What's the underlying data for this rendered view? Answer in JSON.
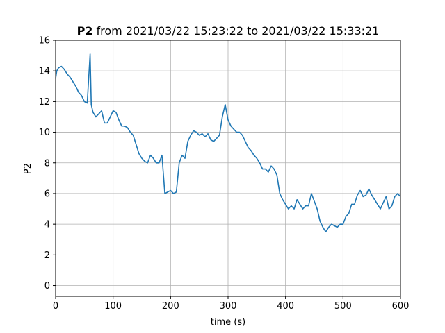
{
  "chart_data": {
    "type": "line",
    "title_bold": "P2",
    "title_rest": " from 2021/03/22 15:23:22 to 2021/03/22 15:33:21",
    "xlabel": "time (s)",
    "ylabel": "P2",
    "xlim": [
      0,
      600
    ],
    "ylim": [
      -0.7,
      16
    ],
    "xticks": [
      0,
      100,
      200,
      300,
      400,
      500,
      600
    ],
    "yticks": [
      0,
      2,
      4,
      6,
      8,
      10,
      12,
      14,
      16
    ],
    "grid": true,
    "line_color": "#1f77b4",
    "series": [
      {
        "x": [
          0,
          2,
          5,
          10,
          15,
          20,
          25,
          30,
          35,
          40,
          45,
          50,
          55,
          60,
          62,
          65,
          70,
          75,
          80,
          85,
          90,
          95,
          100,
          105,
          110,
          115,
          120,
          125,
          130,
          135,
          140,
          145,
          150,
          155,
          160,
          165,
          170,
          175,
          180,
          185,
          190,
          195,
          200,
          205,
          210,
          215,
          220,
          225,
          230,
          235,
          240,
          245,
          250,
          255,
          260,
          265,
          270,
          275,
          280,
          285,
          290,
          295,
          300,
          305,
          310,
          315,
          320,
          325,
          330,
          335,
          340,
          345,
          350,
          355,
          360,
          365,
          370,
          375,
          380,
          385,
          390,
          395,
          400,
          405,
          410,
          415,
          420,
          425,
          430,
          435,
          440,
          445,
          450,
          455,
          460,
          465,
          470,
          475,
          480,
          485,
          490,
          495,
          500,
          505,
          510,
          515,
          520,
          525,
          530,
          535,
          540,
          545,
          550,
          555,
          560,
          565,
          570,
          575,
          580,
          585,
          590,
          595,
          600
        ],
        "y": [
          13.5,
          14.0,
          14.2,
          14.3,
          14.1,
          13.8,
          13.6,
          13.3,
          13.0,
          12.6,
          12.4,
          12.0,
          11.9,
          15.1,
          11.8,
          11.3,
          11.0,
          11.2,
          11.4,
          10.6,
          10.6,
          11.0,
          11.4,
          11.3,
          10.8,
          10.4,
          10.4,
          10.3,
          10.0,
          9.8,
          9.2,
          8.6,
          8.3,
          8.1,
          8.0,
          8.5,
          8.3,
          8.0,
          8.0,
          8.5,
          6.0,
          6.1,
          6.2,
          6.0,
          6.1,
          8.0,
          8.5,
          8.3,
          9.4,
          9.8,
          10.1,
          10.0,
          9.8,
          9.9,
          9.7,
          9.9,
          9.5,
          9.4,
          9.6,
          9.8,
          11.0,
          11.8,
          10.8,
          10.4,
          10.2,
          10.0,
          10.0,
          9.8,
          9.4,
          9.0,
          8.8,
          8.5,
          8.3,
          8.0,
          7.6,
          7.6,
          7.4,
          7.8,
          7.6,
          7.2,
          6.0,
          5.6,
          5.3,
          5.0,
          5.2,
          5.0,
          5.6,
          5.3,
          5.0,
          5.2,
          5.2,
          6.0,
          5.5,
          5.0,
          4.2,
          3.8,
          3.5,
          3.8,
          4.0,
          3.9,
          3.8,
          4.0,
          4.0,
          4.5,
          4.7,
          5.3,
          5.3,
          5.9,
          6.2,
          5.8,
          5.9,
          6.3,
          5.9,
          5.6,
          5.3,
          5.0,
          5.4,
          5.8,
          5.0,
          5.2,
          5.8,
          6.0,
          5.8
        ]
      }
    ]
  }
}
